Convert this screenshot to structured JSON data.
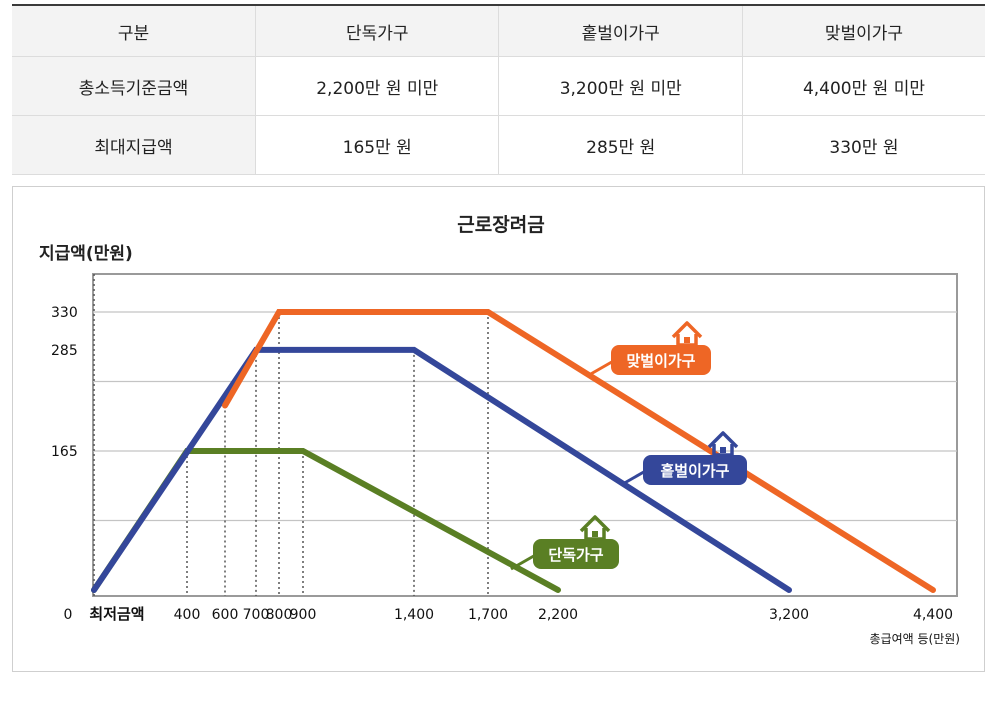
{
  "table": {
    "headers": [
      "구분",
      "단독가구",
      "홑벌이가구",
      "맞벌이가구"
    ],
    "rows": [
      [
        "총소득기준금액",
        "2,200만 원 미만",
        "3,200만 원 미만",
        "4,400만 원 미만"
      ],
      [
        "최대지급액",
        "165만 원",
        "285만 원",
        "330만 원"
      ]
    ]
  },
  "chart_data": {
    "type": "line",
    "title": "근로장려금",
    "ylabel": "지급액(만원)",
    "xlabel": "총급여액 등(만원)",
    "x_origin_label": "0",
    "x_min_label": "최저금액",
    "x_ticks": [
      400,
      600,
      700,
      800,
      900,
      1400,
      1700,
      2200,
      3200,
      4400
    ],
    "x_tick_labels": [
      "400",
      "600",
      "700",
      "800",
      "900",
      "1,400",
      "1,700",
      "2,200",
      "3,200",
      "4,400"
    ],
    "y_ticks": [
      165,
      285,
      330
    ],
    "y_tick_labels": [
      "165",
      "285",
      "330"
    ],
    "y_gridlines": [
      330,
      247.5,
      165,
      82.5
    ],
    "ylim": [
      0,
      350
    ],
    "grid": true,
    "series": [
      {
        "name": "단독가구",
        "color": "#5a7f24",
        "icon": "house-icon",
        "points": [
          [
            0,
            0
          ],
          [
            400,
            165
          ],
          [
            900,
            165
          ],
          [
            2200,
            0
          ]
        ]
      },
      {
        "name": "홑벌이가구",
        "color": "#34479a",
        "icon": "house-icon",
        "points": [
          [
            0,
            0
          ],
          [
            700,
            285
          ],
          [
            1400,
            285
          ],
          [
            3200,
            0
          ]
        ]
      },
      {
        "name": "맞벌이가구",
        "color": "#ee6625",
        "icon": "house-icon",
        "points": [
          [
            600,
            219
          ],
          [
            800,
            330
          ],
          [
            1700,
            330
          ],
          [
            4400,
            0
          ]
        ]
      }
    ]
  }
}
